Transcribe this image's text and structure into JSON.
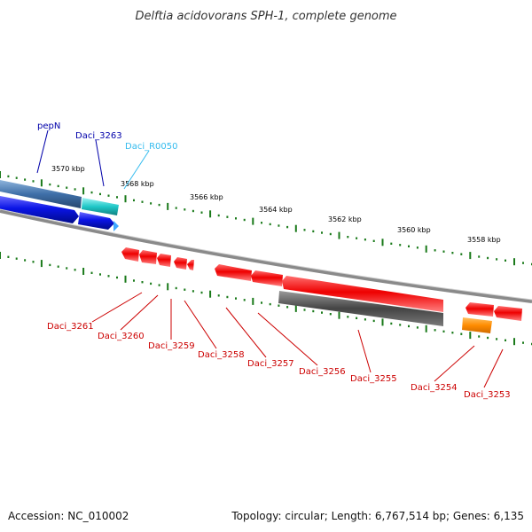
{
  "title": "Delftia acidovorans SPH-1, complete genome",
  "footer": {
    "accession": "Accession: NC_010002",
    "info": "Topology: circular; Length: 6,767,514 bp; Genes: 6,135"
  },
  "colors": {
    "forward_gene": "#0a14e6",
    "forward_gene_light": "#4a7ab8",
    "rna_gene": "#20c8c8",
    "reverse_gene": "#e60000",
    "pseudo_gene": "#555555",
    "other_gene": "#ff9000",
    "tick": "#1a7a1a",
    "backbone": "#888888",
    "label_forward": "#0000aa",
    "label_rna": "#33bbee",
    "label_reverse": "#cc0000"
  },
  "scale": {
    "labels": [
      "3570 kbp",
      "3568 kbp",
      "3566 kbp",
      "3564 kbp",
      "3562 kbp",
      "3560 kbp",
      "3558 kbp"
    ]
  },
  "genes_forward": [
    {
      "name": "pepN",
      "strand": "+"
    },
    {
      "name": "Daci_3263",
      "strand": "+"
    },
    {
      "name": "Daci_R0050",
      "strand": "+",
      "type": "rna"
    }
  ],
  "genes_reverse": [
    {
      "name": "Daci_3261"
    },
    {
      "name": "Daci_3260"
    },
    {
      "name": "Daci_3259"
    },
    {
      "name": "Daci_3258"
    },
    {
      "name": "Daci_3257"
    },
    {
      "name": "Daci_3256"
    },
    {
      "name": "Daci_3255"
    },
    {
      "name": "Daci_3254"
    },
    {
      "name": "Daci_3253"
    }
  ]
}
